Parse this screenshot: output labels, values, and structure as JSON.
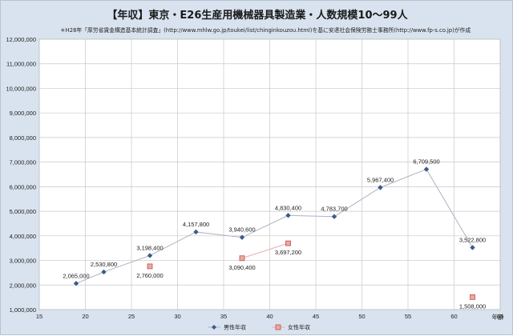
{
  "chart_data": {
    "type": "line",
    "title": "【年収】東京・E26生産用機械器具製造業・人数規模10～99人",
    "note": "＊H28年「厚労省賃金構造基本統計調査」(http://www.mhlw.go.jp/toukei/list/chinginkouzou.html)を基に安達社会保険労務士事務所(http://www.fp-s.co.jp)が作成",
    "xlabel": "年齢",
    "ylabel": "",
    "xlim": [
      15,
      65
    ],
    "ylim": [
      1000000,
      12000000
    ],
    "x_ticks": [
      15,
      20,
      25,
      30,
      35,
      40,
      45,
      50,
      55,
      60,
      65
    ],
    "y_ticks": [
      1000000,
      2000000,
      3000000,
      4000000,
      5000000,
      6000000,
      7000000,
      8000000,
      9000000,
      10000000,
      11000000,
      12000000
    ],
    "y_tick_labels": [
      "1,000,000",
      "2,000,000",
      "3,000,000",
      "4,000,000",
      "5,000,000",
      "6,000,000",
      "7,000,000",
      "8,000,000",
      "9,000,000",
      "10,000,000",
      "11,000,000",
      "12,000,000"
    ],
    "grid": true,
    "legend_position": "bottom",
    "series": [
      {
        "name": "男性年収",
        "color": "#3d5a8a",
        "line_color": "#a9b4c4",
        "marker": "diamond",
        "points": [
          {
            "x": 19,
            "y": 2065000,
            "label": "2,065,000"
          },
          {
            "x": 22,
            "y": 2530800,
            "label": "2,530,800"
          },
          {
            "x": 27,
            "y": 3198400,
            "label": "3,198,400"
          },
          {
            "x": 32,
            "y": 4157800,
            "label": "4,157,800"
          },
          {
            "x": 37,
            "y": 3940600,
            "label": "3,940,600"
          },
          {
            "x": 42,
            "y": 4830400,
            "label": "4,830,400"
          },
          {
            "x": 47,
            "y": 4783700,
            "label": "4,783,700"
          },
          {
            "x": 52,
            "y": 5967400,
            "label": "5,967,400"
          },
          {
            "x": 57,
            "y": 6709500,
            "label": "6,709,500"
          },
          {
            "x": 62,
            "y": 3522800,
            "label": "3,522,800"
          }
        ]
      },
      {
        "name": "女性年収",
        "color": "#c0504d",
        "fill": "#e8a9a4",
        "line_color": "#e6b0ad",
        "marker": "square",
        "segments": [
          [
            {
              "x": 27,
              "y": 2760000,
              "label": "2,760,000"
            }
          ],
          [
            {
              "x": 37,
              "y": 3090400,
              "label": "3,090,400"
            },
            {
              "x": 42,
              "y": 3697200,
              "label": "3,697,200"
            }
          ],
          [
            {
              "x": 62,
              "y": 1508000,
              "label": "1,508,000"
            }
          ]
        ]
      }
    ]
  }
}
